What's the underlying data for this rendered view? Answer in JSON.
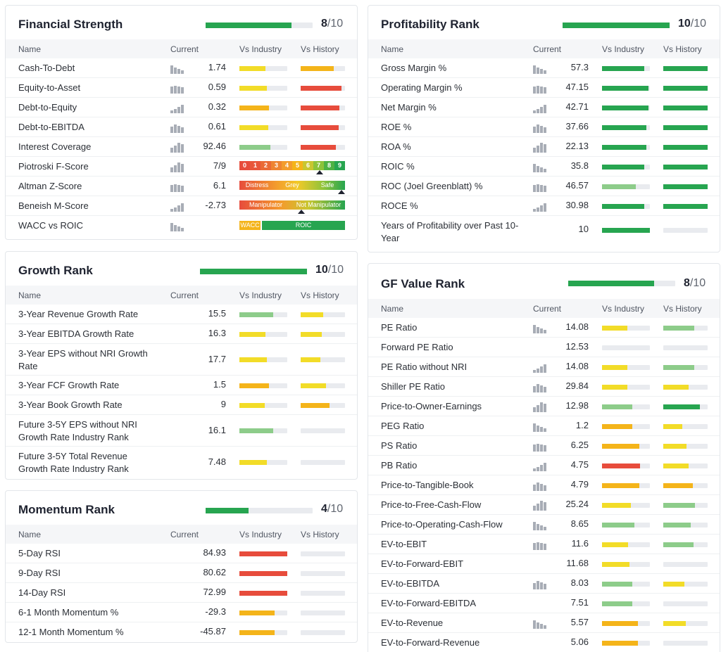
{
  "colors": {
    "green": "#27a550",
    "light_green": "#8dcc8a",
    "yellow": "#f2dc28",
    "orange": "#f4b41a",
    "red": "#e74c3c",
    "track": "#e9ebef"
  },
  "columns": {
    "name": "Name",
    "current": "Current",
    "vs_industry": "Vs Industry",
    "vs_history": "Vs History"
  },
  "financial": {
    "title": "Financial Strength",
    "score": "8",
    "max": "/10",
    "fill": 0.8,
    "rows": [
      {
        "name": "Cash-To-Debt",
        "value": "1.74",
        "ind": {
          "c": "yellow",
          "f": 0.55
        },
        "hist": {
          "c": "orange",
          "f": 0.75
        }
      },
      {
        "name": "Equity-to-Asset",
        "value": "0.59",
        "ind": {
          "c": "yellow",
          "f": 0.57
        },
        "hist": {
          "c": "red",
          "f": 0.92
        }
      },
      {
        "name": "Debt-to-Equity",
        "value": "0.32",
        "ind": {
          "c": "orange",
          "f": 0.62
        },
        "hist": {
          "c": "red",
          "f": 0.88
        }
      },
      {
        "name": "Debt-to-EBITDA",
        "value": "0.61",
        "ind": {
          "c": "yellow",
          "f": 0.6
        },
        "hist": {
          "c": "red",
          "f": 0.85
        }
      },
      {
        "name": "Interest Coverage",
        "value": "92.46",
        "ind": {
          "c": "light_green",
          "f": 0.65
        },
        "hist": {
          "c": "red",
          "f": 0.8
        }
      }
    ],
    "piotroski": {
      "name": "Piotroski F-Score",
      "value": "7/9",
      "labels": [
        "0",
        "1",
        "2",
        "3",
        "4",
        "5",
        "6",
        "7",
        "8",
        "9"
      ]
    },
    "altman": {
      "name": "Altman Z-Score",
      "value": "6.1",
      "labels": [
        "Distress",
        "Grey",
        "Safe"
      ]
    },
    "beneish": {
      "name": "Beneish M-Score",
      "value": "-2.73",
      "labels": [
        "Manipulator",
        "Not Manipulator"
      ]
    },
    "wacc": {
      "name": "WACC vs ROIC",
      "labels": [
        "WACC",
        "ROIC"
      ]
    }
  },
  "profitability": {
    "title": "Profitability Rank",
    "score": "10",
    "max": "/10",
    "fill": 1.0,
    "rows": [
      {
        "name": "Gross Margin %",
        "value": "57.3",
        "ind": {
          "c": "green",
          "f": 0.88
        },
        "hist": {
          "c": "green",
          "f": 1.0
        }
      },
      {
        "name": "Operating Margin %",
        "value": "47.15",
        "ind": {
          "c": "green",
          "f": 0.97
        },
        "hist": {
          "c": "green",
          "f": 1.0
        }
      },
      {
        "name": "Net Margin %",
        "value": "42.71",
        "ind": {
          "c": "green",
          "f": 0.97
        },
        "hist": {
          "c": "green",
          "f": 1.0
        }
      },
      {
        "name": "ROE %",
        "value": "37.66",
        "ind": {
          "c": "green",
          "f": 0.92
        },
        "hist": {
          "c": "green",
          "f": 1.0
        }
      },
      {
        "name": "ROA %",
        "value": "22.13",
        "ind": {
          "c": "green",
          "f": 0.93
        },
        "hist": {
          "c": "green",
          "f": 1.0
        }
      },
      {
        "name": "ROIC %",
        "value": "35.8",
        "ind": {
          "c": "green",
          "f": 0.88
        },
        "hist": {
          "c": "green",
          "f": 1.0
        }
      },
      {
        "name": "ROC (Joel Greenblatt) %",
        "value": "46.57",
        "ind": {
          "c": "light_green",
          "f": 0.7
        },
        "hist": {
          "c": "green",
          "f": 1.0
        }
      },
      {
        "name": "ROCE %",
        "value": "30.98",
        "ind": {
          "c": "green",
          "f": 0.88
        },
        "hist": {
          "c": "green",
          "f": 1.0
        }
      },
      {
        "name": "Years of Profitability over Past 10-Year",
        "value": "10",
        "ind": {
          "c": "green",
          "f": 1.0
        },
        "hist": {
          "c": "track",
          "f": 0
        }
      }
    ]
  },
  "growth": {
    "title": "Growth Rank",
    "score": "10",
    "max": "/10",
    "fill": 1.0,
    "rows": [
      {
        "name": "3-Year Revenue Growth Rate",
        "value": "15.5",
        "ind": {
          "c": "light_green",
          "f": 0.7
        },
        "hist": {
          "c": "yellow",
          "f": 0.5
        }
      },
      {
        "name": "3-Year EBITDA Growth Rate",
        "value": "16.3",
        "ind": {
          "c": "yellow",
          "f": 0.55
        },
        "hist": {
          "c": "yellow",
          "f": 0.47
        }
      },
      {
        "name": "3-Year EPS without NRI Growth Rate",
        "value": "17.7",
        "ind": {
          "c": "yellow",
          "f": 0.57
        },
        "hist": {
          "c": "yellow",
          "f": 0.45
        }
      },
      {
        "name": "3-Year FCF Growth Rate",
        "value": "1.5",
        "ind": {
          "c": "orange",
          "f": 0.62
        },
        "hist": {
          "c": "yellow",
          "f": 0.57
        }
      },
      {
        "name": "3-Year Book Growth Rate",
        "value": "9",
        "ind": {
          "c": "yellow",
          "f": 0.53
        },
        "hist": {
          "c": "orange",
          "f": 0.65
        }
      },
      {
        "name": "Future 3-5Y EPS without NRI Growth Rate Industry Rank",
        "value": "16.1",
        "ind": {
          "c": "light_green",
          "f": 0.7
        },
        "hist": {
          "c": "track",
          "f": 0
        }
      },
      {
        "name": "Future 3-5Y Total Revenue Growth Rate Industry Rank",
        "value": "7.48",
        "ind": {
          "c": "yellow",
          "f": 0.57
        },
        "hist": {
          "c": "track",
          "f": 0
        }
      }
    ]
  },
  "momentum": {
    "title": "Momentum Rank",
    "score": "4",
    "max": "/10",
    "fill": 0.4,
    "rows": [
      {
        "name": "5-Day RSI",
        "value": "84.93",
        "ind": {
          "c": "red",
          "f": 1.0
        },
        "hist": {
          "c": "track",
          "f": 0
        }
      },
      {
        "name": "9-Day RSI",
        "value": "80.62",
        "ind": {
          "c": "red",
          "f": 1.0
        },
        "hist": {
          "c": "track",
          "f": 0
        }
      },
      {
        "name": "14-Day RSI",
        "value": "72.99",
        "ind": {
          "c": "red",
          "f": 1.0
        },
        "hist": {
          "c": "track",
          "f": 0
        }
      },
      {
        "name": "6-1 Month Momentum %",
        "value": "-29.3",
        "ind": {
          "c": "orange",
          "f": 0.73
        },
        "hist": {
          "c": "track",
          "f": 0
        }
      },
      {
        "name": "12-1 Month Momentum %",
        "value": "-45.87",
        "ind": {
          "c": "orange",
          "f": 0.73
        },
        "hist": {
          "c": "track",
          "f": 0
        }
      }
    ]
  },
  "gfvalue": {
    "title": "GF Value Rank",
    "score": "8",
    "max": "/10",
    "fill": 0.8,
    "rows": [
      {
        "name": "PE Ratio",
        "value": "14.08",
        "ind": {
          "c": "yellow",
          "f": 0.53
        },
        "hist": {
          "c": "light_green",
          "f": 0.7
        },
        "spark": true
      },
      {
        "name": "Forward PE Ratio",
        "value": "12.53",
        "ind": {
          "c": "track",
          "f": 0
        },
        "hist": {
          "c": "track",
          "f": 0
        },
        "spark": false
      },
      {
        "name": "PE Ratio without NRI",
        "value": "14.08",
        "ind": {
          "c": "yellow",
          "f": 0.53
        },
        "hist": {
          "c": "light_green",
          "f": 0.7
        },
        "spark": true
      },
      {
        "name": "Shiller PE Ratio",
        "value": "29.84",
        "ind": {
          "c": "yellow",
          "f": 0.53
        },
        "hist": {
          "c": "yellow",
          "f": 0.57
        },
        "spark": true
      },
      {
        "name": "Price-to-Owner-Earnings",
        "value": "12.98",
        "ind": {
          "c": "light_green",
          "f": 0.63
        },
        "hist": {
          "c": "green",
          "f": 0.82
        },
        "spark": true
      },
      {
        "name": "PEG Ratio",
        "value": "1.2",
        "ind": {
          "c": "orange",
          "f": 0.63
        },
        "hist": {
          "c": "yellow",
          "f": 0.43
        },
        "spark": true
      },
      {
        "name": "PS Ratio",
        "value": "6.25",
        "ind": {
          "c": "orange",
          "f": 0.78
        },
        "hist": {
          "c": "yellow",
          "f": 0.53
        },
        "spark": true
      },
      {
        "name": "PB Ratio",
        "value": "4.75",
        "ind": {
          "c": "red",
          "f": 0.8
        },
        "hist": {
          "c": "yellow",
          "f": 0.57
        },
        "spark": true
      },
      {
        "name": "Price-to-Tangible-Book",
        "value": "4.79",
        "ind": {
          "c": "orange",
          "f": 0.78
        },
        "hist": {
          "c": "orange",
          "f": 0.67
        },
        "spark": true
      },
      {
        "name": "Price-to-Free-Cash-Flow",
        "value": "25.24",
        "ind": {
          "c": "yellow",
          "f": 0.6
        },
        "hist": {
          "c": "light_green",
          "f": 0.72
        },
        "spark": true
      },
      {
        "name": "Price-to-Operating-Cash-Flow",
        "value": "8.65",
        "ind": {
          "c": "light_green",
          "f": 0.67
        },
        "hist": {
          "c": "light_green",
          "f": 0.62
        },
        "spark": true
      },
      {
        "name": "EV-to-EBIT",
        "value": "11.6",
        "ind": {
          "c": "yellow",
          "f": 0.55
        },
        "hist": {
          "c": "light_green",
          "f": 0.68
        },
        "spark": true
      },
      {
        "name": "EV-to-Forward-EBIT",
        "value": "11.68",
        "ind": {
          "c": "yellow",
          "f": 0.58
        },
        "hist": {
          "c": "track",
          "f": 0
        },
        "spark": false
      },
      {
        "name": "EV-to-EBITDA",
        "value": "8.03",
        "ind": {
          "c": "light_green",
          "f": 0.63
        },
        "hist": {
          "c": "yellow",
          "f": 0.47
        },
        "spark": true
      },
      {
        "name": "EV-to-Forward-EBITDA",
        "value": "7.51",
        "ind": {
          "c": "light_green",
          "f": 0.63
        },
        "hist": {
          "c": "track",
          "f": 0
        },
        "spark": false
      },
      {
        "name": "EV-to-Revenue",
        "value": "5.57",
        "ind": {
          "c": "orange",
          "f": 0.75
        },
        "hist": {
          "c": "yellow",
          "f": 0.5
        },
        "spark": true
      },
      {
        "name": "EV-to-Forward-Revenue",
        "value": "5.06",
        "ind": {
          "c": "orange",
          "f": 0.75
        },
        "hist": {
          "c": "track",
          "f": 0
        },
        "spark": false
      }
    ]
  }
}
